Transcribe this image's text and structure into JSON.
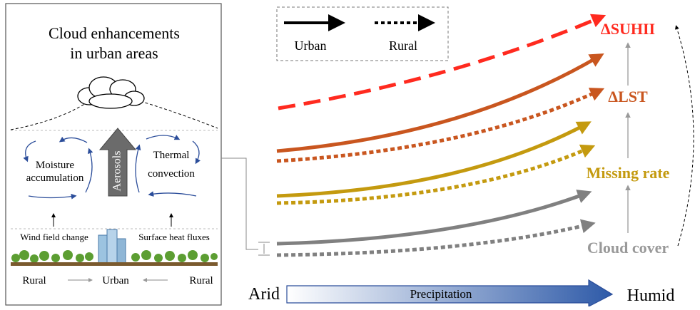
{
  "panel": {
    "title_lines": [
      "Cloud enhancements",
      "in urban areas"
    ],
    "moisture_lines": [
      "Moisture",
      "accumulation"
    ],
    "aerosols": "Aerosols",
    "thermal_lines": [
      "Thermal",
      "convection"
    ],
    "wind": "Wind field change",
    "heat": "Surface heat fluxes",
    "transect": [
      "Rural",
      "Urban",
      "Rural"
    ]
  },
  "legend": {
    "items": [
      "Urban",
      "Rural"
    ]
  },
  "outcomes": [
    "ΔSUHII",
    "ΔLST",
    "Missing rate",
    "Cloud cover"
  ],
  "axis": {
    "left": "Arid",
    "middle": "Precipitation",
    "right": "Humid"
  }
}
